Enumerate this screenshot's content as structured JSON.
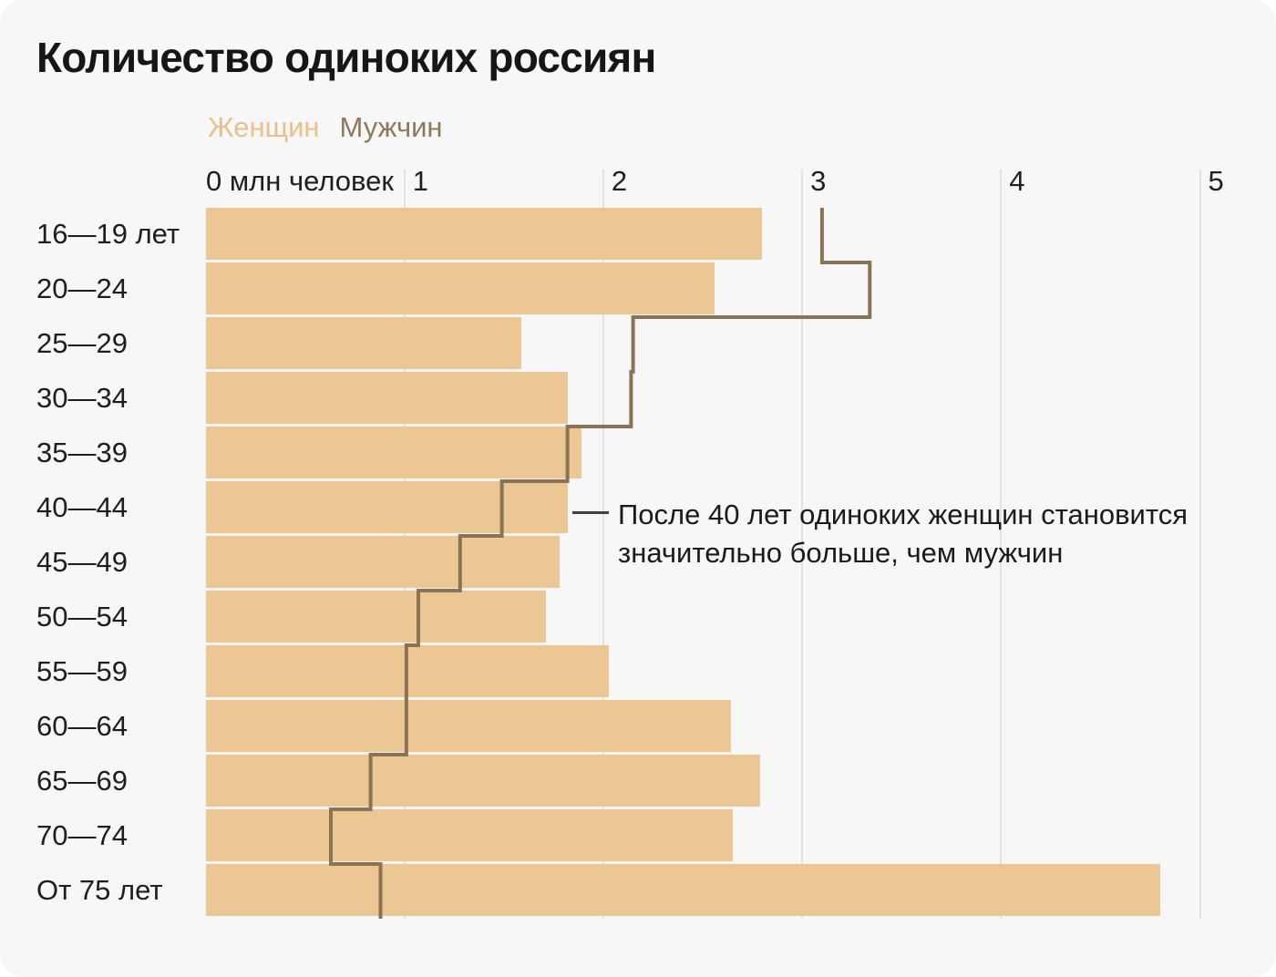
{
  "title": "Количество одиноких россиян",
  "legend": {
    "women": "Женщин",
    "men": "Мужчин"
  },
  "annotation": {
    "line1": "После 40 лет одиноких женщин становится",
    "line2": "значительно больше, чем мужчин"
  },
  "colors": {
    "women_bar": "#ecc794",
    "men_line": "#8a7355",
    "legend_women_text": "#e6c18c",
    "legend_men_text": "#8d7958",
    "card_background": "#f7f7f7",
    "annotation_connector": "#404040"
  },
  "chart_data": {
    "type": "bar",
    "orientation": "horizontal",
    "title": "Количество одиноких россиян",
    "unit_label": "0 млн человек",
    "x_ticks": [
      1,
      2,
      3,
      4,
      5
    ],
    "xlim": [
      0,
      5
    ],
    "grid": true,
    "categories": [
      "16—19 лет",
      "20—24",
      "25—29",
      "30—34",
      "35—39",
      "40—44",
      "45—49",
      "50—54",
      "55—59",
      "60—64",
      "65—69",
      "70—74",
      "От 75 лет"
    ],
    "series": [
      {
        "name": "Женщин",
        "style": "bar",
        "values": [
          2.8,
          2.56,
          1.59,
          1.82,
          1.89,
          1.82,
          1.78,
          1.71,
          2.03,
          2.64,
          2.79,
          2.65,
          4.8
        ]
      },
      {
        "name": "Мужчин",
        "style": "step-line",
        "values": [
          3.1,
          3.34,
          2.15,
          2.14,
          1.82,
          1.49,
          1.28,
          1.07,
          1.01,
          1.01,
          0.83,
          0.63,
          0.88
        ]
      }
    ],
    "annotation": "После 40 лет одиноких женщин становится значительно больше, чем мужчин"
  }
}
